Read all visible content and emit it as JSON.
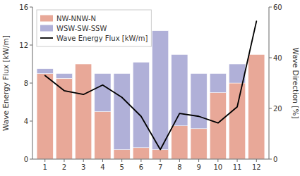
{
  "chart_data": {
    "type": "bar",
    "stacked": true,
    "x": [
      1,
      2,
      3,
      4,
      5,
      6,
      7,
      8,
      9,
      10,
      11,
      12
    ],
    "xlim": [
      0.35,
      12.65
    ],
    "xticks": [
      1,
      2,
      3,
      4,
      5,
      6,
      7,
      8,
      9,
      10,
      11,
      12
    ],
    "y_label": "Wave Energy Flux [kW/m]",
    "ylim": [
      0,
      16
    ],
    "yticks": [
      0,
      4,
      8,
      12,
      16
    ],
    "y2_label": "Wave Direction [%]",
    "y2lim": [
      0,
      60
    ],
    "y2ticks": [
      0,
      20,
      40,
      60
    ],
    "grid": false,
    "legend": "upper left",
    "series": [
      {
        "name": "NW-NNW-N",
        "type": "bar",
        "color": "#e8a898",
        "values": [
          9.0,
          8.5,
          10.0,
          5.0,
          1.0,
          1.2,
          1.0,
          3.5,
          3.2,
          7.0,
          8.0,
          11.0
        ]
      },
      {
        "name": "WSW-SW-SSW",
        "type": "bar",
        "color": "#b0b0d8",
        "values": [
          0.5,
          0.5,
          0.0,
          4.0,
          8.0,
          9.0,
          12.5,
          7.5,
          5.8,
          2.0,
          2.0,
          0.0
        ]
      },
      {
        "name": "Wave Energy Flux [kW/m]",
        "type": "line",
        "color": "black",
        "values": [
          8.8,
          7.2,
          6.8,
          7.8,
          6.5,
          4.5,
          1.0,
          4.8,
          4.5,
          3.8,
          5.5,
          14.5
        ]
      }
    ]
  }
}
